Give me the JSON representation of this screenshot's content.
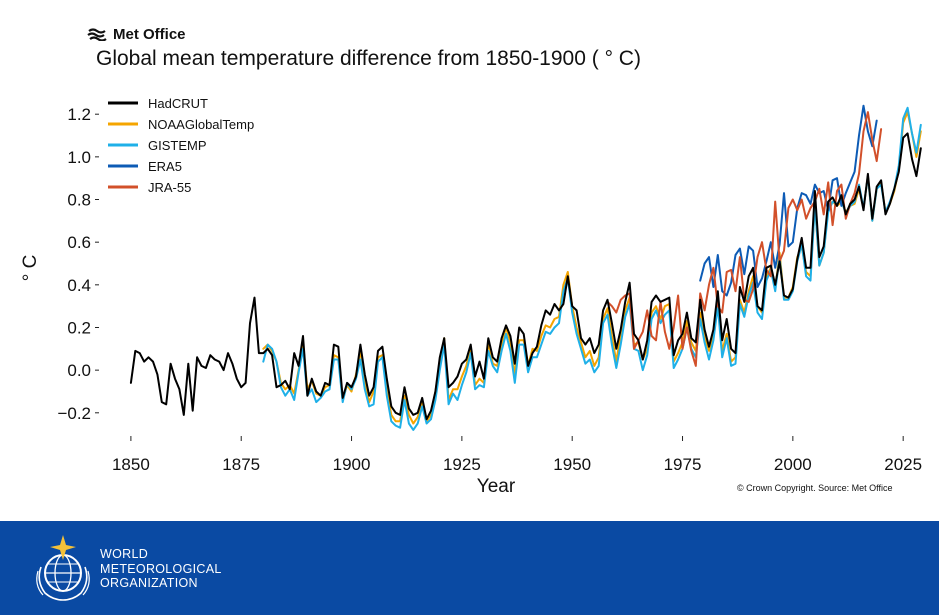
{
  "header": {
    "brand_name": "Met Office",
    "title": "Global mean temperature difference from 1850-1900 ( ° C)"
  },
  "footer": {
    "copyright": "© Crown Copyright. Source: Met Office",
    "org_lines": [
      "WORLD",
      "METEOROLOGICAL",
      "ORGANIZATION"
    ],
    "band_color": "#0a4aa3",
    "logo_icon": "wmo-emblem-icon"
  },
  "chart_data": {
    "type": "line",
    "title": "Global mean temperature difference from 1850-1900 ( ° C)",
    "xlabel": "Year",
    "ylabel": "° C",
    "xlim": [
      1843,
      2027
    ],
    "ylim": [
      -0.29,
      1.29
    ],
    "xticks": [
      1850,
      1875,
      1900,
      1925,
      1950,
      1975,
      2000,
      2025
    ],
    "yticks": [
      -0.2,
      0.0,
      0.2,
      0.4,
      0.6,
      0.8,
      1.0,
      1.2
    ],
    "ytick_labels": [
      "−0.2",
      "0.0",
      "0.2",
      "0.4",
      "0.6",
      "0.8",
      "1.0",
      "1.2"
    ],
    "grid": false,
    "legend_position": "top-left",
    "series": [
      {
        "name": "HadCRUT",
        "color": "#000000",
        "x_start": 1850,
        "values": [
          -0.06,
          0.09,
          0.08,
          0.04,
          0.06,
          0.04,
          -0.02,
          -0.15,
          -0.16,
          0.03,
          -0.04,
          -0.09,
          -0.21,
          0.03,
          -0.19,
          0.06,
          0.02,
          0.01,
          0.07,
          0.05,
          0.04,
          0.0,
          0.08,
          0.03,
          -0.04,
          -0.08,
          -0.06,
          0.22,
          0.34,
          0.08,
          0.08,
          0.1,
          0.07,
          -0.08,
          -0.07,
          -0.05,
          -0.09,
          0.08,
          0.02,
          0.16,
          -0.12,
          -0.04,
          -0.1,
          -0.12,
          -0.06,
          -0.07,
          0.12,
          0.11,
          -0.13,
          -0.06,
          -0.08,
          -0.03,
          0.12,
          -0.02,
          -0.12,
          -0.08,
          0.09,
          0.11,
          -0.04,
          -0.17,
          -0.2,
          -0.21,
          -0.08,
          -0.18,
          -0.21,
          -0.2,
          -0.13,
          -0.23,
          -0.19,
          -0.1,
          0.06,
          0.15,
          -0.08,
          -0.06,
          -0.03,
          0.03,
          0.05,
          0.12,
          -0.03,
          0.04,
          -0.04,
          0.15,
          0.06,
          0.04,
          0.15,
          0.21,
          0.16,
          0.03,
          0.2,
          0.17,
          0.02,
          0.08,
          0.11,
          0.21,
          0.28,
          0.26,
          0.31,
          0.28,
          0.31,
          0.44,
          0.3,
          0.28,
          0.15,
          0.12,
          0.15,
          0.08,
          0.12,
          0.28,
          0.33,
          0.22,
          0.1,
          0.19,
          0.32,
          0.41,
          0.17,
          0.14,
          0.05,
          0.14,
          0.32,
          0.35,
          0.32,
          0.33,
          0.34,
          0.07,
          0.14,
          0.17,
          0.27,
          0.15,
          0.13,
          0.33,
          0.19,
          0.11,
          0.19,
          0.37,
          0.14,
          0.24,
          0.1,
          0.08,
          0.39,
          0.32,
          0.44,
          0.48,
          0.3,
          0.28,
          0.48,
          0.49,
          0.4,
          0.51,
          0.35,
          0.34,
          0.38,
          0.52,
          0.62,
          0.48,
          0.48,
          0.84,
          0.53,
          0.58,
          0.79,
          0.81,
          0.77,
          0.82,
          0.73,
          0.78,
          0.8,
          0.86,
          0.75,
          0.92,
          0.71,
          0.86,
          0.89,
          0.73,
          0.78,
          0.85,
          0.93,
          1.09,
          1.11,
          0.99,
          0.91,
          1.04
        ]
      },
      {
        "name": "NOAAGlobalTemp",
        "color": "#f5a500",
        "x_start": 1880,
        "values": [
          0.1,
          0.12,
          0.09,
          0.04,
          -0.06,
          -0.09,
          -0.07,
          -0.11,
          0.0,
          0.13,
          -0.09,
          -0.05,
          -0.11,
          -0.12,
          -0.08,
          -0.07,
          0.07,
          0.06,
          -0.14,
          -0.07,
          -0.1,
          -0.02,
          0.09,
          -0.05,
          -0.15,
          -0.1,
          0.06,
          0.07,
          -0.09,
          -0.21,
          -0.24,
          -0.24,
          -0.12,
          -0.21,
          -0.25,
          -0.22,
          -0.15,
          -0.24,
          -0.21,
          -0.1,
          0.03,
          0.15,
          -0.14,
          -0.09,
          -0.09,
          -0.03,
          0.02,
          0.11,
          -0.07,
          -0.04,
          -0.06,
          0.13,
          0.03,
          0.02,
          0.12,
          0.2,
          0.13,
          -0.02,
          0.14,
          0.14,
          0.02,
          0.1,
          0.09,
          0.16,
          0.21,
          0.2,
          0.24,
          0.25,
          0.4,
          0.46,
          0.3,
          0.2,
          0.13,
          0.06,
          0.09,
          0.02,
          0.06,
          0.24,
          0.29,
          0.16,
          0.04,
          0.17,
          0.28,
          0.34,
          0.12,
          0.13,
          0.05,
          0.1,
          0.27,
          0.3,
          0.24,
          0.3,
          0.31,
          0.04,
          0.08,
          0.13,
          0.23,
          0.13,
          0.09,
          0.27,
          0.16,
          0.09,
          0.17,
          0.32,
          0.09,
          0.17,
          0.04,
          0.06,
          0.33,
          0.27,
          0.37,
          0.44,
          0.3,
          0.27,
          0.44,
          0.48,
          0.38,
          0.55,
          0.34,
          0.34,
          0.39,
          0.53,
          0.58,
          0.46,
          0.44,
          0.78,
          0.49,
          0.55,
          0.76,
          0.79,
          0.77,
          0.79,
          0.74,
          0.77,
          0.78,
          0.85,
          0.76,
          0.91,
          0.7,
          0.85,
          0.88,
          0.74,
          0.78,
          0.84,
          0.94,
          1.16,
          1.21,
          1.11,
          1.0,
          1.12
        ]
      },
      {
        "name": "GISTEMP",
        "color": "#1fb0e8",
        "x_start": 1880,
        "values": [
          0.04,
          0.12,
          0.1,
          0.04,
          -0.08,
          -0.12,
          -0.09,
          -0.14,
          -0.01,
          0.1,
          -0.12,
          -0.09,
          -0.15,
          -0.13,
          -0.1,
          -0.09,
          0.05,
          0.05,
          -0.15,
          -0.06,
          -0.09,
          -0.04,
          0.05,
          -0.09,
          -0.17,
          -0.16,
          0.04,
          0.06,
          -0.12,
          -0.24,
          -0.26,
          -0.27,
          -0.14,
          -0.25,
          -0.28,
          -0.25,
          -0.17,
          -0.25,
          -0.23,
          -0.14,
          0.0,
          0.12,
          -0.16,
          -0.11,
          -0.14,
          -0.07,
          -0.01,
          0.08,
          -0.09,
          -0.07,
          -0.08,
          0.09,
          0.02,
          -0.01,
          0.09,
          0.17,
          0.09,
          -0.06,
          0.12,
          0.12,
          -0.01,
          0.06,
          0.06,
          0.12,
          0.18,
          0.17,
          0.2,
          0.22,
          0.37,
          0.43,
          0.27,
          0.17,
          0.1,
          0.03,
          0.05,
          -0.01,
          0.02,
          0.22,
          0.26,
          0.12,
          0.01,
          0.12,
          0.25,
          0.31,
          0.1,
          0.09,
          0.0,
          0.07,
          0.24,
          0.28,
          0.22,
          0.26,
          0.28,
          0.01,
          0.05,
          0.1,
          0.2,
          0.1,
          0.06,
          0.24,
          0.13,
          0.05,
          0.14,
          0.3,
          0.06,
          0.15,
          0.02,
          0.03,
          0.31,
          0.25,
          0.35,
          0.41,
          0.27,
          0.24,
          0.42,
          0.47,
          0.37,
          0.53,
          0.33,
          0.33,
          0.37,
          0.51,
          0.59,
          0.44,
          0.42,
          0.78,
          0.49,
          0.55,
          0.74,
          0.79,
          0.78,
          0.8,
          0.73,
          0.77,
          0.79,
          0.87,
          0.76,
          0.91,
          0.7,
          0.85,
          0.87,
          0.74,
          0.79,
          0.85,
          0.96,
          1.18,
          1.23,
          1.11,
          1.02,
          1.15
        ]
      },
      {
        "name": "ERA5",
        "color": "#0d5bb5",
        "x_start": 1979,
        "values": [
          0.42,
          0.5,
          0.53,
          0.39,
          0.54,
          0.37,
          0.35,
          0.41,
          0.54,
          0.57,
          0.45,
          0.58,
          0.56,
          0.39,
          0.43,
          0.51,
          0.6,
          0.48,
          0.59,
          0.83,
          0.58,
          0.6,
          0.76,
          0.83,
          0.82,
          0.78,
          0.87,
          0.83,
          0.84,
          0.75,
          0.89,
          0.9,
          0.77,
          0.83,
          0.88,
          0.93,
          1.1,
          1.24,
          1.12,
          1.05,
          1.17
        ]
      },
      {
        "name": "JRA-55",
        "color": "#d2502a",
        "x_start": 1958,
        "values": [
          0.32,
          0.3,
          0.27,
          0.33,
          0.35,
          0.36,
          0.1,
          0.14,
          0.18,
          0.28,
          0.16,
          0.14,
          0.32,
          0.18,
          0.1,
          0.2,
          0.35,
          0.1,
          0.2,
          0.09,
          0.02,
          0.36,
          0.28,
          0.4,
          0.48,
          0.3,
          0.27,
          0.46,
          0.47,
          0.37,
          0.53,
          0.33,
          0.32,
          0.38,
          0.53,
          0.6,
          0.47,
          0.44,
          0.79,
          0.51,
          0.56,
          0.76,
          0.8,
          0.75,
          0.8,
          0.71,
          0.76,
          0.79,
          0.85,
          0.73,
          0.88,
          0.68,
          0.84,
          0.87,
          0.71,
          0.78,
          0.83,
          0.92,
          1.12,
          1.21,
          1.08,
          0.98,
          1.13
        ]
      }
    ]
  }
}
